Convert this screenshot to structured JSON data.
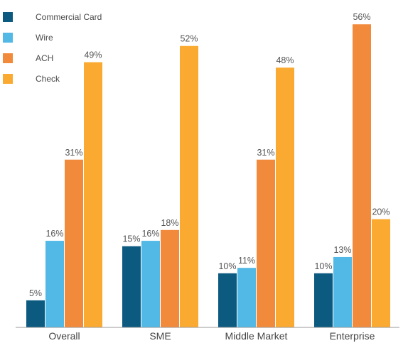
{
  "chart_data": {
    "type": "bar",
    "categories": [
      "Overall",
      "SME",
      "Middle Market",
      "Enterprise"
    ],
    "series": [
      {
        "name": "Commercial Card",
        "color": "#0d5a80",
        "values": [
          5,
          15,
          10,
          10
        ],
        "labels": [
          "5%",
          "15%",
          "10%",
          "10%"
        ]
      },
      {
        "name": "Wire",
        "color": "#52b9e6",
        "values": [
          16,
          16,
          11,
          13
        ],
        "labels": [
          "16%",
          "16%",
          "11%",
          "13%"
        ]
      },
      {
        "name": "ACH",
        "color": "#f28a3b",
        "values": [
          31,
          18,
          31,
          56
        ],
        "labels": [
          "31%",
          "18%",
          "31%",
          "56%"
        ]
      },
      {
        "name": "Check",
        "color": "#fbaa31",
        "values": [
          49,
          52,
          48,
          20
        ],
        "labels": [
          "49%",
          "52%",
          "48%",
          "20%"
        ]
      }
    ],
    "ylim": [
      0,
      58
    ],
    "grid": false,
    "legend_position": "top-left",
    "title": "",
    "xlabel": "",
    "ylabel": ""
  }
}
